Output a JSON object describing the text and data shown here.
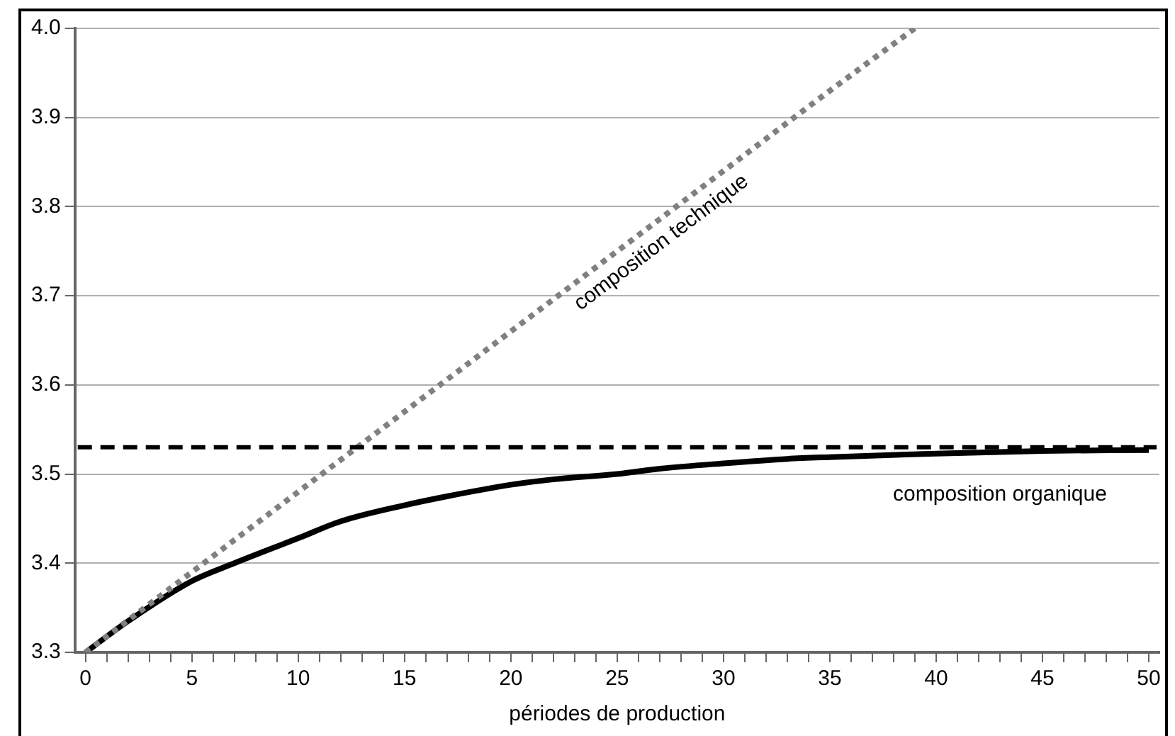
{
  "chart_data": {
    "type": "line",
    "xlabel": "périodes de production",
    "series": [
      {
        "name": "composition technique",
        "color": "#808080",
        "line_style": "dotted",
        "x": [
          0,
          5,
          10,
          15,
          20,
          25,
          30,
          35,
          39
        ],
        "values": [
          3.3,
          3.39,
          3.48,
          3.57,
          3.66,
          3.75,
          3.84,
          3.93,
          4.0
        ]
      },
      {
        "name": "composition organique",
        "color": "#000000",
        "line_style": "solid",
        "x": [
          0,
          2,
          5,
          7,
          10,
          12,
          15,
          17,
          20,
          22,
          25,
          27,
          30,
          33,
          35,
          40,
          45,
          50
        ],
        "values": [
          3.3,
          3.335,
          3.38,
          3.4,
          3.428,
          3.447,
          3.465,
          3.475,
          3.488,
          3.494,
          3.5,
          3.506,
          3.512,
          3.517,
          3.519,
          3.523,
          3.526,
          3.527
        ]
      }
    ],
    "ref_lines": [
      {
        "axis": "y",
        "value": 3.53,
        "color": "#000000",
        "line_style": "dashed"
      }
    ],
    "xlim": [
      -0.5,
      50.5
    ],
    "xticks": [
      {
        "value": 0,
        "label": "0"
      },
      {
        "value": 1,
        "label": null
      },
      {
        "value": 2,
        "label": null
      },
      {
        "value": 3,
        "label": null
      },
      {
        "value": 4,
        "label": null
      },
      {
        "value": 5,
        "label": "5"
      },
      {
        "value": 6,
        "label": null
      },
      {
        "value": 7,
        "label": null
      },
      {
        "value": 8,
        "label": null
      },
      {
        "value": 9,
        "label": null
      },
      {
        "value": 10,
        "label": "10"
      },
      {
        "value": 11,
        "label": null
      },
      {
        "value": 12,
        "label": null
      },
      {
        "value": 13,
        "label": null
      },
      {
        "value": 14,
        "label": null
      },
      {
        "value": 15,
        "label": "15"
      },
      {
        "value": 16,
        "label": null
      },
      {
        "value": 17,
        "label": null
      },
      {
        "value": 18,
        "label": null
      },
      {
        "value": 19,
        "label": null
      },
      {
        "value": 20,
        "label": "20"
      },
      {
        "value": 21,
        "label": null
      },
      {
        "value": 22,
        "label": null
      },
      {
        "value": 23,
        "label": null
      },
      {
        "value": 24,
        "label": null
      },
      {
        "value": 25,
        "label": "25"
      },
      {
        "value": 26,
        "label": null
      },
      {
        "value": 27,
        "label": null
      },
      {
        "value": 28,
        "label": null
      },
      {
        "value": 29,
        "label": null
      },
      {
        "value": 30,
        "label": "30"
      },
      {
        "value": 31,
        "label": null
      },
      {
        "value": 32,
        "label": null
      },
      {
        "value": 33,
        "label": null
      },
      {
        "value": 34,
        "label": null
      },
      {
        "value": 35,
        "label": "35"
      },
      {
        "value": 36,
        "label": null
      },
      {
        "value": 37,
        "label": null
      },
      {
        "value": 38,
        "label": null
      },
      {
        "value": 39,
        "label": null
      },
      {
        "value": 40,
        "label": "40"
      },
      {
        "value": 41,
        "label": null
      },
      {
        "value": 42,
        "label": null
      },
      {
        "value": 43,
        "label": null
      },
      {
        "value": 44,
        "label": null
      },
      {
        "value": 45,
        "label": "45"
      },
      {
        "value": 46,
        "label": null
      },
      {
        "value": 47,
        "label": null
      },
      {
        "value": 48,
        "label": null
      },
      {
        "value": 49,
        "label": null
      },
      {
        "value": 50,
        "label": "50"
      }
    ],
    "ylim": [
      3.3,
      4.0
    ],
    "yticks": [
      {
        "value": 3.3,
        "label": "3.3"
      },
      {
        "value": 3.4,
        "label": "3.4"
      },
      {
        "value": 3.5,
        "label": "3.5"
      },
      {
        "value": 3.6,
        "label": "3.6"
      },
      {
        "value": 3.7,
        "label": "3.7"
      },
      {
        "value": 3.8,
        "label": "3.8"
      },
      {
        "value": 3.9,
        "label": "3.9"
      },
      {
        "value": 4.0,
        "label": "4.0"
      }
    ],
    "grid": "y",
    "legend": false,
    "marker": "none"
  }
}
